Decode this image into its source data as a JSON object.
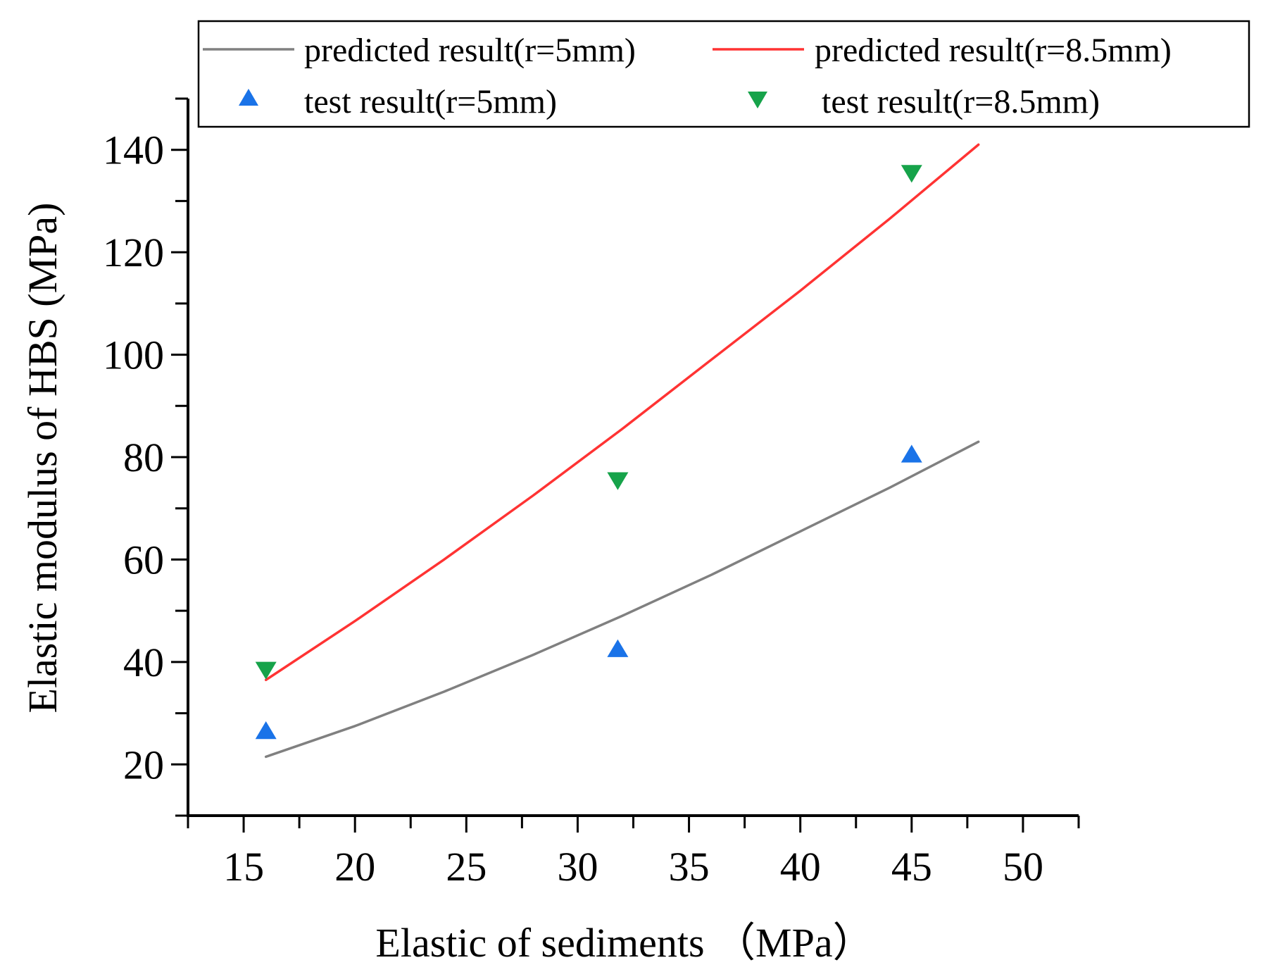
{
  "chart_data": {
    "type": "line",
    "title": "",
    "xlabel": "Elastic of sediments （MPa）",
    "ylabel": "Elastic modulus of HBS (MPa)",
    "xlim": [
      12.5,
      52.5
    ],
    "ylim": [
      10,
      150
    ],
    "x_ticks": [
      15,
      20,
      25,
      30,
      35,
      40,
      45,
      50
    ],
    "y_ticks": [
      20,
      40,
      60,
      80,
      100,
      120,
      140
    ],
    "grid": false,
    "legend_position": "top",
    "series": [
      {
        "name": "predicted result(r=5mm)",
        "kind": "line",
        "color": "#808080",
        "x": [
          16,
          20,
          24,
          28,
          32,
          36,
          40,
          44,
          48
        ],
        "y": [
          21.5,
          27.5,
          34.2,
          41.4,
          49.0,
          57.0,
          65.5,
          74.0,
          83.0
        ]
      },
      {
        "name": "predicted result(r=8.5mm)",
        "kind": "line",
        "color": "#ff3333",
        "x": [
          16,
          20,
          24,
          28,
          32,
          36,
          40,
          44,
          48
        ],
        "y": [
          36.5,
          48.0,
          60.0,
          72.5,
          85.5,
          99.0,
          112.5,
          126.5,
          141.0
        ]
      },
      {
        "name": "test result(r=5mm)",
        "kind": "scatter",
        "marker": "triangle-up",
        "color": "#1a73e8",
        "x": [
          16,
          31.8,
          45
        ],
        "y": [
          26.5,
          42.5,
          80.5
        ]
      },
      {
        "name": "test result(r=8.5mm)",
        "kind": "scatter",
        "marker": "triangle-down",
        "color": "#16a34a",
        "x": [
          16,
          31.8,
          45
        ],
        "y": [
          38.5,
          75.5,
          135.5
        ]
      }
    ]
  }
}
